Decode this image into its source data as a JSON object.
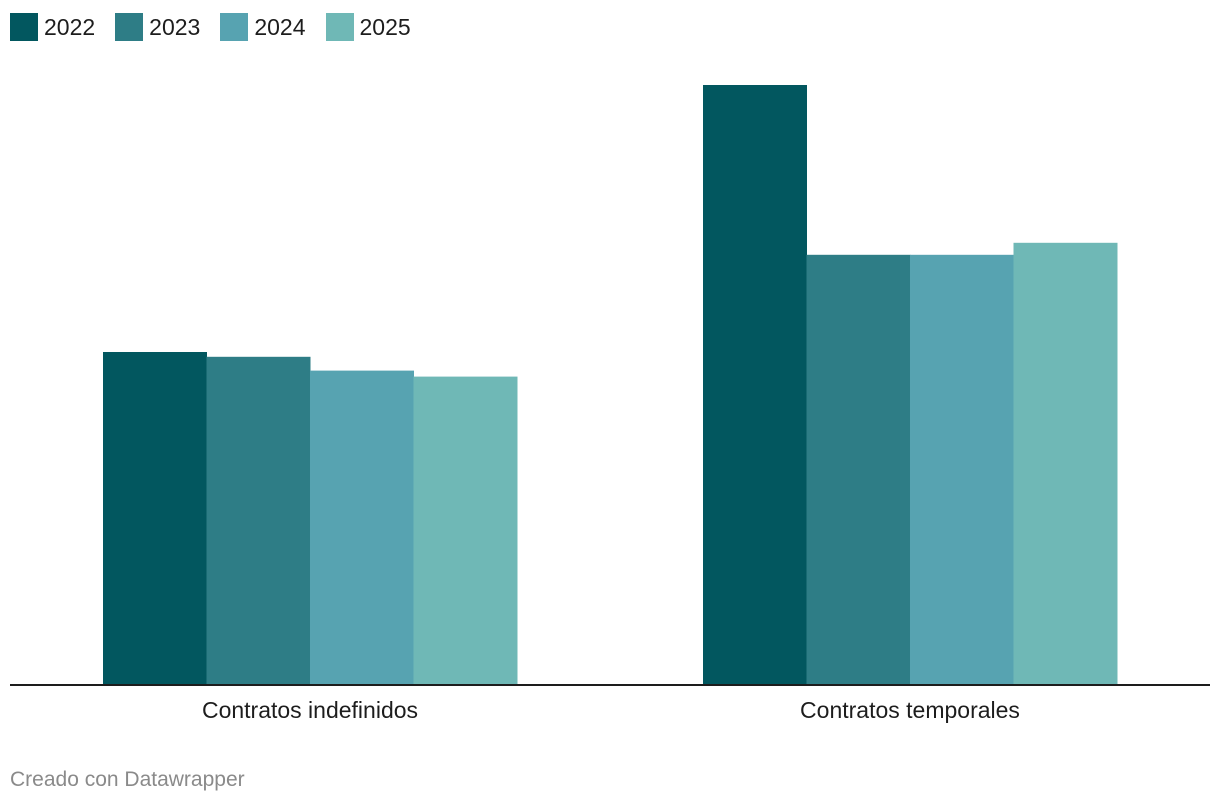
{
  "chart_data": {
    "type": "bar",
    "categories": [
      "Contratos indefinidos",
      "Contratos temporales"
    ],
    "series": [
      {
        "name": "2022",
        "color": "#02575f",
        "values": [
          55.5,
          100
        ]
      },
      {
        "name": "2023",
        "color": "#2e7d86",
        "values": [
          54.7,
          71.7
        ]
      },
      {
        "name": "2024",
        "color": "#57a3b1",
        "values": [
          52.4,
          71.7
        ]
      },
      {
        "name": "2025",
        "color": "#6fb8b6",
        "values": [
          51.4,
          73.7
        ]
      }
    ],
    "title": "",
    "xlabel": "",
    "ylabel": "",
    "ylim": [
      0,
      100
    ],
    "grid": false,
    "legend": "top-left"
  },
  "footer": {
    "credit": "Creado con Datawrapper"
  }
}
